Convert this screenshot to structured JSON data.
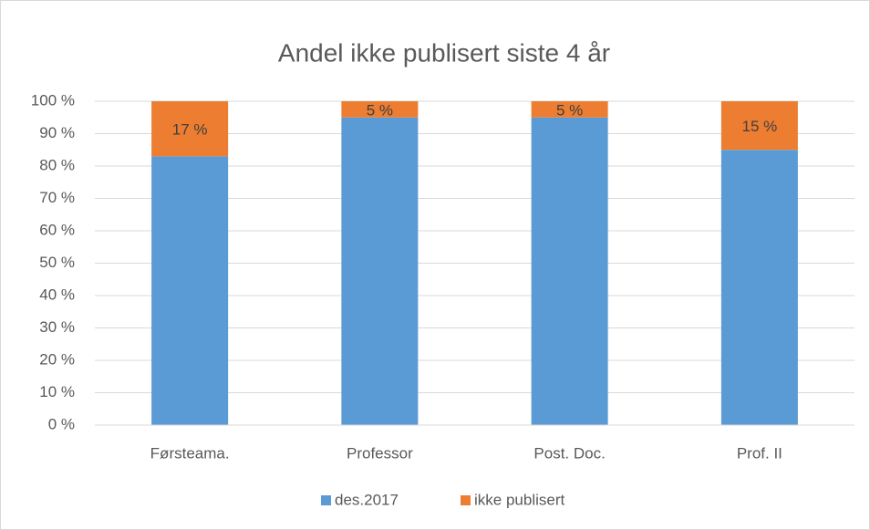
{
  "chart_data": {
    "type": "stacked_bar",
    "title": "Andel ikke publisert siste 4 år",
    "categories": [
      "Førsteama.",
      "Professor",
      "Post. Doc.",
      "Prof. II"
    ],
    "series": [
      {
        "name": "des.2017",
        "color": "#5b9bd5",
        "values": [
          83,
          95,
          95,
          85
        ]
      },
      {
        "name": "ikke publisert",
        "color": "#ed7d31",
        "values": [
          17,
          5,
          5,
          15
        ],
        "value_labels": [
          "17 %",
          "5 %",
          "5 %",
          "15 %"
        ]
      }
    ],
    "ylim": [
      0,
      100
    ],
    "yticks": [
      {
        "value": 0,
        "label": "0 %"
      },
      {
        "value": 10,
        "label": "10 %"
      },
      {
        "value": 20,
        "label": "20 %"
      },
      {
        "value": 30,
        "label": "30 %"
      },
      {
        "value": 40,
        "label": "40 %"
      },
      {
        "value": 50,
        "label": "50 %"
      },
      {
        "value": 60,
        "label": "60 %"
      },
      {
        "value": 70,
        "label": "70 %"
      },
      {
        "value": 80,
        "label": "80 %"
      },
      {
        "value": 90,
        "label": "90 %"
      },
      {
        "value": 100,
        "label": "100 %"
      }
    ],
    "grid": true,
    "legend": "bottom"
  }
}
